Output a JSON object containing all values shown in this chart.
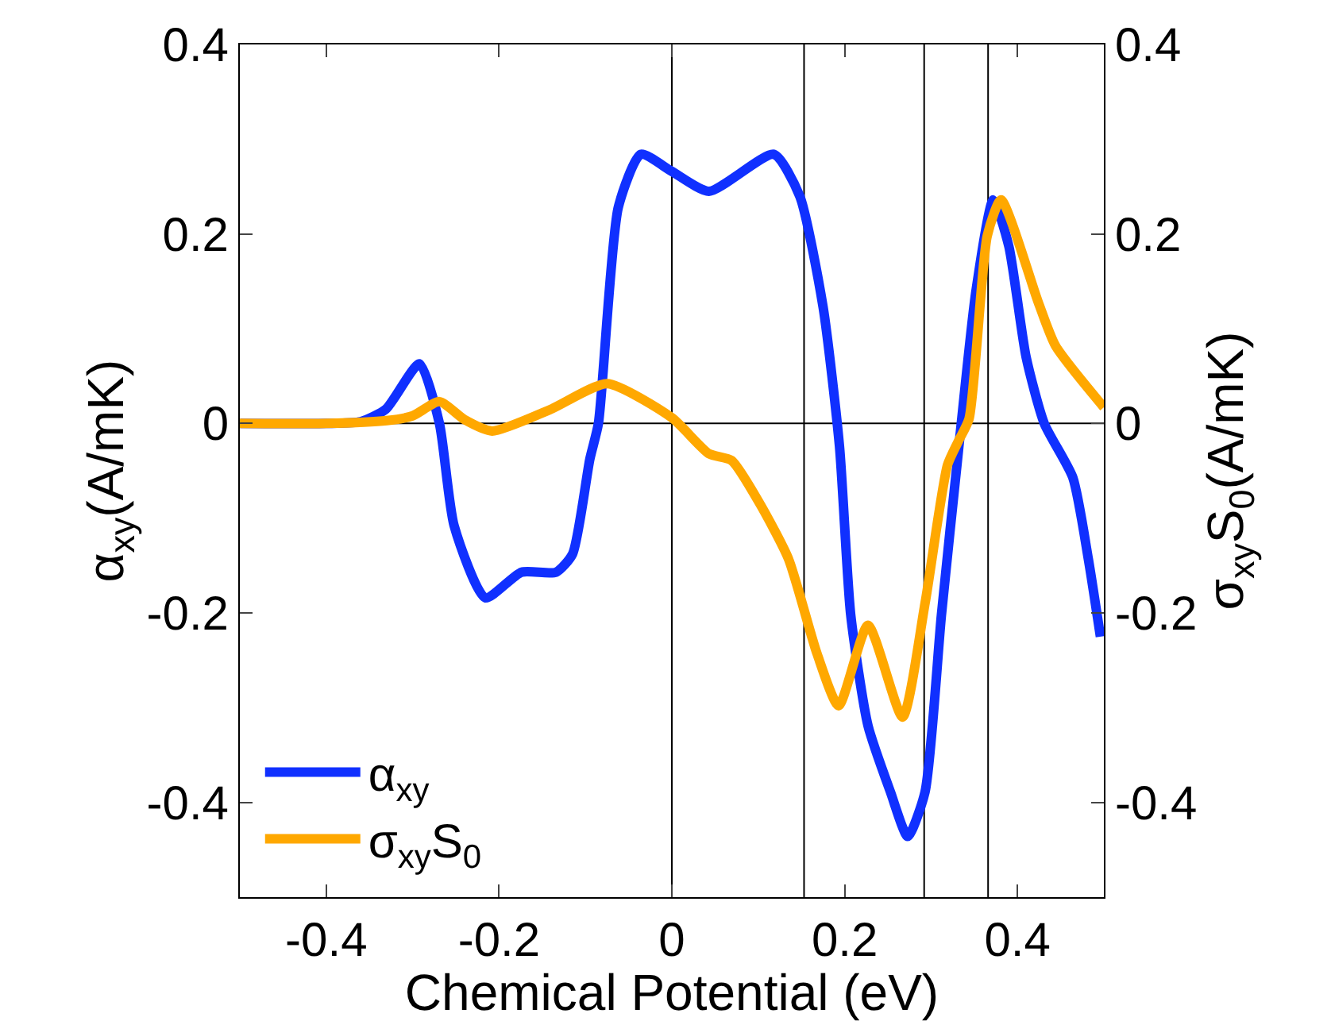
{
  "chart_data": {
    "type": "line",
    "xlabel": "Chemical Potential (eV)",
    "ylabel": "α$_{xy}$(A/mK)",
    "y2label": "σ$_{xy}$S$_{0}$(A/mK)",
    "xlim": [
      -0.5,
      0.5
    ],
    "xticks": [
      -0.4,
      -0.2,
      0,
      0.2,
      0.4
    ],
    "ylim": [
      -0.5,
      0.4
    ],
    "yticks": [
      -0.4,
      -0.2,
      0,
      0.2,
      0.4
    ],
    "y2lim": [
      -0.5,
      0.4
    ],
    "y2ticks": [
      -0.4,
      -0.2,
      0,
      0.2,
      0.4
    ],
    "grid": false,
    "legend": "bottom left",
    "marker": "none",
    "line_style": "solid",
    "series": [
      {
        "name": "α$_{xy}$",
        "color": "#1030ff",
        "x": [
          -0.5,
          -0.4,
          -0.36,
          -0.331,
          -0.292,
          -0.269,
          -0.252,
          -0.216,
          -0.174,
          -0.134,
          -0.115,
          -0.095,
          -0.085,
          -0.062,
          -0.036,
          0.0,
          0.043,
          0.118,
          0.148,
          0.175,
          0.194,
          0.207,
          0.227,
          0.253,
          0.273,
          0.293,
          0.312,
          0.332,
          0.352,
          0.372,
          0.39,
          0.41,
          0.431,
          0.464,
          0.482,
          0.496
        ],
        "values": [
          0,
          0,
          0.002,
          0.015,
          0.063,
          0,
          -0.108,
          -0.184,
          -0.157,
          -0.157,
          -0.138,
          -0.038,
          0,
          0.228,
          0.284,
          0.266,
          0.245,
          0.284,
          0.24,
          0.123,
          -0.024,
          -0.202,
          -0.319,
          -0.389,
          -0.436,
          -0.389,
          -0.202,
          -0.026,
          0.14,
          0.236,
          0.187,
          0.07,
          0,
          -0.057,
          -0.143,
          -0.225
        ]
      },
      {
        "name": "σ$_{xy}$S$_{0}$",
        "color": "#ffa800",
        "axis": "y2",
        "x": [
          -0.5,
          -0.4,
          -0.33,
          -0.3,
          -0.269,
          -0.24,
          -0.208,
          -0.14,
          -0.075,
          0.0,
          0.043,
          0.069,
          0.102,
          0.135,
          0.168,
          0.193,
          0.227,
          0.267,
          0.293,
          0.319,
          0.332,
          0.344,
          0.365,
          0.381,
          0.424,
          0.444,
          0.5
        ],
        "values": [
          0,
          0,
          0.003,
          0.008,
          0.023,
          0.004,
          -0.008,
          0.015,
          0.042,
          0.006,
          -0.032,
          -0.039,
          -0.085,
          -0.143,
          -0.243,
          -0.298,
          -0.213,
          -0.31,
          -0.19,
          -0.044,
          -0.018,
          0.005,
          0.198,
          0.236,
          0.128,
          0.082,
          0.017
        ]
      }
    ],
    "ref_lines": [
      {
        "axis": "x",
        "value": 0,
        "color": "#000000"
      },
      {
        "axis": "x",
        "value": 0.153,
        "color": "#000000"
      },
      {
        "axis": "x",
        "value": 0.292,
        "color": "#000000"
      },
      {
        "axis": "x",
        "value": 0.366,
        "color": "#000000"
      },
      {
        "axis": "y",
        "value": 0,
        "color": "#000000"
      }
    ]
  }
}
